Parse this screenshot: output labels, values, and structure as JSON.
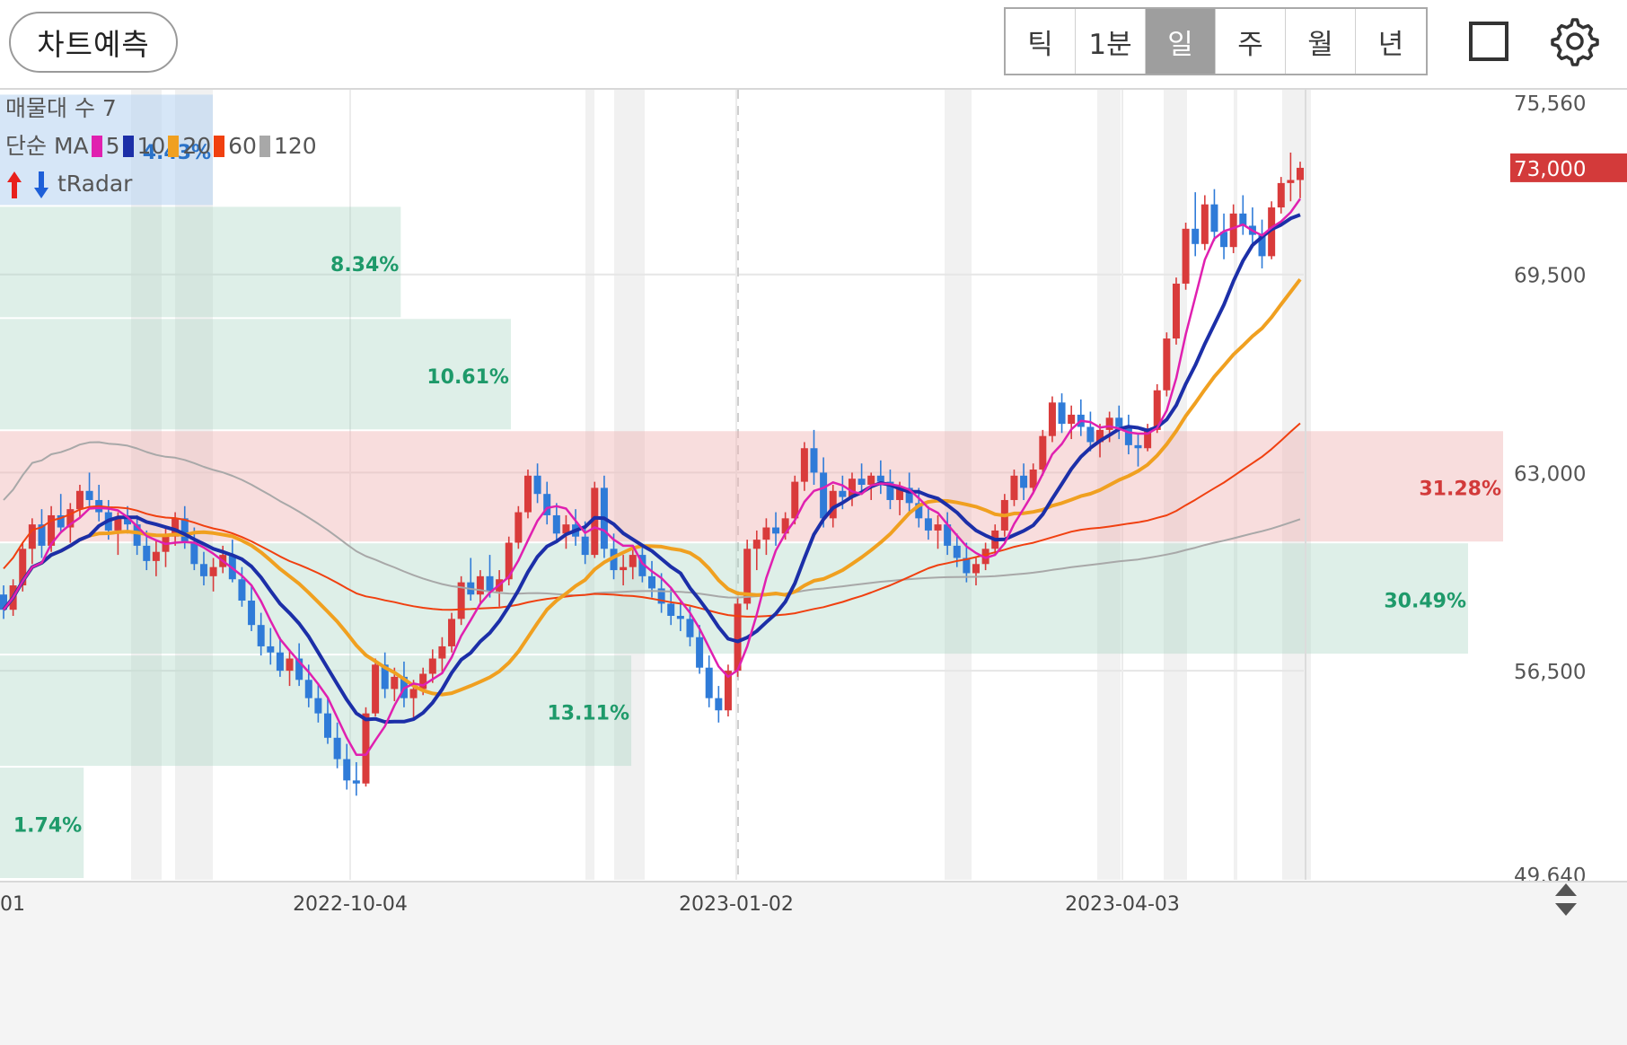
{
  "toolbar": {
    "predict_label": "차트예측",
    "periods": [
      "틱",
      "1분",
      "일",
      "주",
      "월",
      "년"
    ],
    "active_period": "일"
  },
  "legend": {
    "volume_profile": "매물대 수 7",
    "ma_label": "단순 MA",
    "ma_periods": [
      "5",
      "10",
      "20",
      "60",
      "120"
    ],
    "ma_colors": [
      "#e020b0",
      "#1c2fa8",
      "#f0a020",
      "#f04010",
      "#a8a8a8"
    ],
    "tradar": "tRadar"
  },
  "chart_data": {
    "type": "candlestick",
    "y_axis_ticks": [
      "75,560",
      "69,500",
      "63,000",
      "56,500",
      "49,640"
    ],
    "ylim": [
      49640,
      75560
    ],
    "current_price": "73,000",
    "x_axis_ticks": [
      "2022-10-04",
      "2023-01-02",
      "2023-04-03"
    ],
    "x_axis_left_fragment": "01",
    "volume_profile": [
      {
        "label": "1.74%",
        "low": 49640,
        "high": 53320,
        "relative": 0.057
      },
      {
        "label": "13.11%",
        "low": 53320,
        "high": 57000,
        "relative": 0.43
      },
      {
        "label": "30.49%",
        "low": 57000,
        "high": 60680,
        "relative": 1.0
      },
      {
        "label": "31.28%",
        "low": 60680,
        "high": 64360,
        "relative": 1.0,
        "highlight": true
      },
      {
        "label": "10.61%",
        "low": 64360,
        "high": 68040,
        "relative": 0.348
      },
      {
        "label": "8.34%",
        "low": 68040,
        "high": 71720,
        "relative": 0.273
      },
      {
        "label": "4.43%",
        "low": 71720,
        "high": 75400,
        "relative": 0.145
      }
    ],
    "candles": [
      [
        59000,
        59300,
        58200,
        58500
      ],
      [
        58500,
        59500,
        58300,
        59300
      ],
      [
        59300,
        60700,
        59100,
        60500
      ],
      [
        60500,
        61500,
        60000,
        61300
      ],
      [
        61300,
        61800,
        60200,
        60600
      ],
      [
        60600,
        61900,
        60400,
        61600
      ],
      [
        61600,
        62300,
        61000,
        61200
      ],
      [
        61200,
        62000,
        60700,
        61800
      ],
      [
        61800,
        62600,
        61500,
        62400
      ],
      [
        62400,
        63000,
        61900,
        62100
      ],
      [
        62100,
        62600,
        61400,
        61700
      ],
      [
        61700,
        62100,
        60800,
        61100
      ],
      [
        61100,
        61700,
        60300,
        61500
      ],
      [
        61500,
        61900,
        61000,
        61300
      ],
      [
        61300,
        61600,
        60300,
        60600
      ],
      [
        60600,
        61100,
        59800,
        60100
      ],
      [
        60100,
        60800,
        59600,
        60400
      ],
      [
        60400,
        61200,
        59900,
        60900
      ],
      [
        60900,
        61700,
        60600,
        61500
      ],
      [
        61500,
        61900,
        60500,
        60700
      ],
      [
        60700,
        61200,
        59800,
        60000
      ],
      [
        60000,
        60400,
        59300,
        59600
      ],
      [
        59600,
        60200,
        59100,
        59900
      ],
      [
        59900,
        60600,
        59700,
        60300
      ],
      [
        60300,
        60800,
        59400,
        59500
      ],
      [
        59500,
        59900,
        58600,
        58800
      ],
      [
        58800,
        59300,
        57800,
        58000
      ],
      [
        58000,
        58400,
        57000,
        57300
      ],
      [
        57300,
        57900,
        56700,
        57100
      ],
      [
        57100,
        57600,
        56300,
        56500
      ],
      [
        56500,
        57200,
        56000,
        56900
      ],
      [
        56900,
        57400,
        56000,
        56200
      ],
      [
        56200,
        56700,
        55300,
        55600
      ],
      [
        55600,
        56100,
        54800,
        55100
      ],
      [
        55100,
        55600,
        54100,
        54300
      ],
      [
        54300,
        54800,
        53300,
        53600
      ],
      [
        53600,
        54100,
        52600,
        52900
      ],
      [
        52900,
        53500,
        52400,
        52800
      ],
      [
        52800,
        55300,
        52700,
        55100
      ],
      [
        55100,
        56900,
        55000,
        56700
      ],
      [
        56700,
        57100,
        55600,
        55900
      ],
      [
        55900,
        56600,
        55500,
        56300
      ],
      [
        56300,
        56800,
        55300,
        55600
      ],
      [
        55600,
        56200,
        54900,
        55900
      ],
      [
        55900,
        56600,
        55700,
        56400
      ],
      [
        56400,
        57200,
        56100,
        56900
      ],
      [
        56900,
        57600,
        56400,
        57300
      ],
      [
        57300,
        58400,
        57100,
        58200
      ],
      [
        58200,
        59600,
        58000,
        59400
      ],
      [
        59400,
        60200,
        58800,
        59000
      ],
      [
        59000,
        59800,
        58700,
        59600
      ],
      [
        59600,
        60300,
        58900,
        59100
      ],
      [
        59100,
        59800,
        58600,
        59500
      ],
      [
        59500,
        60900,
        59300,
        60700
      ],
      [
        60700,
        61900,
        60500,
        61700
      ],
      [
        61700,
        63100,
        61500,
        62900
      ],
      [
        62900,
        63300,
        62000,
        62300
      ],
      [
        62300,
        62700,
        61300,
        61600
      ],
      [
        61600,
        62000,
        60700,
        61000
      ],
      [
        61000,
        61600,
        60500,
        61300
      ],
      [
        61300,
        61800,
        60600,
        60900
      ],
      [
        60900,
        61400,
        60000,
        60300
      ],
      [
        60300,
        62700,
        60200,
        62500
      ],
      [
        62500,
        62900,
        60200,
        60500
      ],
      [
        60500,
        61000,
        59500,
        59800
      ],
      [
        59800,
        60300,
        59300,
        59900
      ],
      [
        59900,
        60500,
        59500,
        60300
      ],
      [
        60300,
        60600,
        59400,
        59600
      ],
      [
        59600,
        60100,
        58900,
        59200
      ],
      [
        59200,
        59700,
        58400,
        58700
      ],
      [
        58700,
        59200,
        58000,
        58300
      ],
      [
        58300,
        58800,
        57800,
        58200
      ],
      [
        58200,
        58600,
        57300,
        57600
      ],
      [
        57600,
        58000,
        56400,
        56600
      ],
      [
        56600,
        57000,
        55300,
        55600
      ],
      [
        55600,
        56000,
        54800,
        55200
      ],
      [
        55200,
        56700,
        55000,
        56500
      ],
      [
        56500,
        58900,
        56300,
        58700
      ],
      [
        58700,
        60800,
        58500,
        60500
      ],
      [
        60500,
        61100,
        59800,
        60800
      ],
      [
        60800,
        61500,
        60300,
        61200
      ],
      [
        61200,
        61700,
        60600,
        61000
      ],
      [
        61000,
        61700,
        60800,
        61500
      ],
      [
        61500,
        62900,
        61300,
        62700
      ],
      [
        62700,
        64000,
        62400,
        63800
      ],
      [
        63800,
        64400,
        62600,
        63000
      ],
      [
        63000,
        63500,
        61200,
        61500
      ],
      [
        61500,
        62600,
        61200,
        62400
      ],
      [
        62400,
        62900,
        61800,
        62200
      ],
      [
        62200,
        63000,
        61900,
        62800
      ],
      [
        62800,
        63300,
        62300,
        62600
      ],
      [
        62600,
        63000,
        62100,
        62900
      ],
      [
        62900,
        63400,
        62300,
        62700
      ],
      [
        62700,
        63100,
        61800,
        62100
      ],
      [
        62100,
        62700,
        61600,
        62500
      ],
      [
        62500,
        63000,
        61700,
        62000
      ],
      [
        62000,
        62500,
        61200,
        61500
      ],
      [
        61500,
        61900,
        60800,
        61100
      ],
      [
        61100,
        61600,
        60500,
        61300
      ],
      [
        61300,
        61700,
        60300,
        60600
      ],
      [
        60600,
        61000,
        59900,
        60200
      ],
      [
        60200,
        60700,
        59400,
        59700
      ],
      [
        59700,
        60200,
        59300,
        60000
      ],
      [
        60000,
        60700,
        59800,
        60500
      ],
      [
        60500,
        61300,
        60300,
        61100
      ],
      [
        61100,
        62300,
        60900,
        62100
      ],
      [
        62100,
        63100,
        61900,
        62900
      ],
      [
        62900,
        63300,
        62100,
        62500
      ],
      [
        62500,
        63300,
        62300,
        63100
      ],
      [
        63100,
        64400,
        62900,
        64200
      ],
      [
        64200,
        65500,
        64000,
        65300
      ],
      [
        65300,
        65600,
        64300,
        64600
      ],
      [
        64600,
        65200,
        64100,
        64900
      ],
      [
        64900,
        65400,
        64200,
        64500
      ],
      [
        64500,
        65000,
        63700,
        64000
      ],
      [
        64000,
        64600,
        63500,
        64400
      ],
      [
        64400,
        65000,
        64000,
        64800
      ],
      [
        64800,
        65200,
        64100,
        64500
      ],
      [
        64500,
        64900,
        63600,
        63900
      ],
      [
        63900,
        64300,
        63200,
        63800
      ],
      [
        63800,
        64600,
        63700,
        64400
      ],
      [
        64400,
        65900,
        64300,
        65700
      ],
      [
        65700,
        67600,
        65500,
        67400
      ],
      [
        67400,
        69400,
        67200,
        69200
      ],
      [
        69200,
        71200,
        69000,
        71000
      ],
      [
        71000,
        72200,
        70100,
        70500
      ],
      [
        70500,
        72100,
        70300,
        71800
      ],
      [
        71800,
        72300,
        70600,
        70900
      ],
      [
        70900,
        71500,
        70000,
        70400
      ],
      [
        70400,
        71800,
        70200,
        71500
      ],
      [
        71500,
        72100,
        70800,
        71100
      ],
      [
        71100,
        71700,
        70500,
        70800
      ],
      [
        70800,
        71300,
        69700,
        70100
      ],
      [
        70100,
        71900,
        70000,
        71700
      ],
      [
        71700,
        72700,
        71500,
        72500
      ],
      [
        72500,
        73500,
        71900,
        72600
      ],
      [
        72600,
        73200,
        72000,
        73000
      ]
    ]
  }
}
